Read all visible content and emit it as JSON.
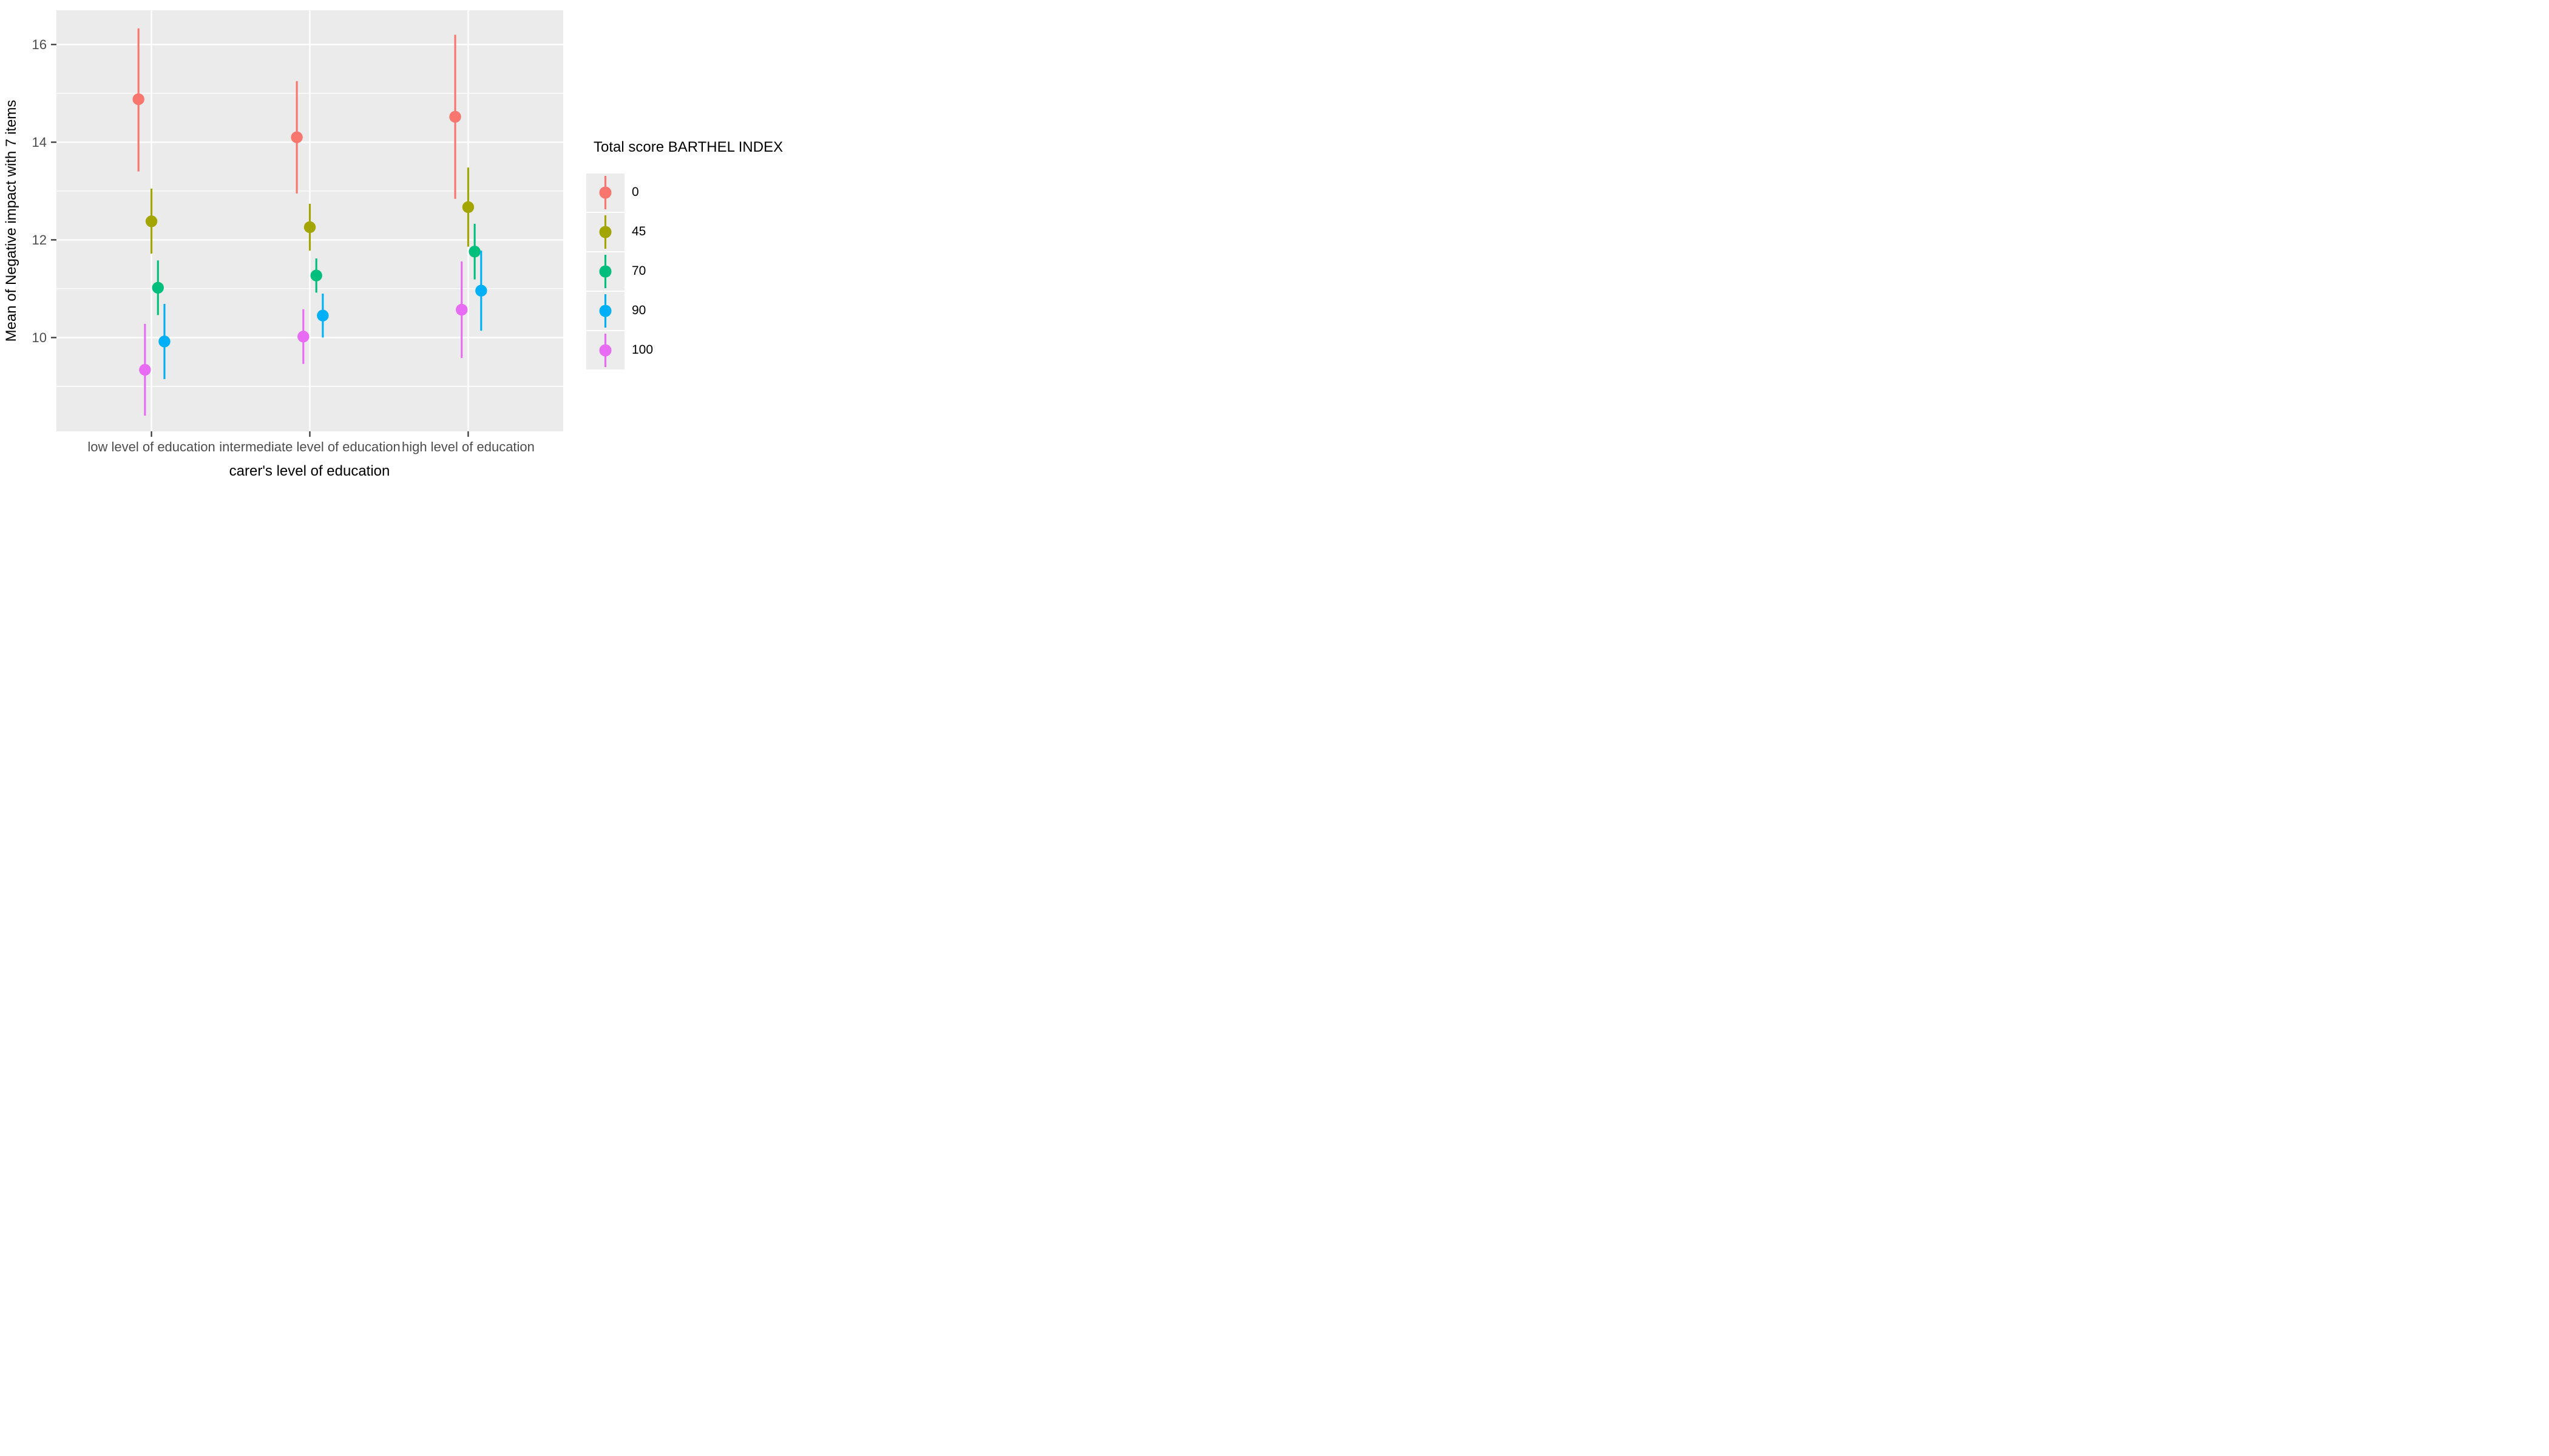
{
  "figure": {
    "background": "#FFFFFF",
    "panel_background": "#EBEBEB",
    "grid_color": "#FFFFFF",
    "tick_color": "#333333",
    "axis_text_color": "#4D4D4D",
    "title_text_color": "#000000"
  },
  "x_axis": {
    "title": "carer's level of education",
    "tick_labels": [
      "low level of education",
      "intermediate level of education",
      "high level of education"
    ]
  },
  "y_axis": {
    "title": "Mean of Negative impact with 7 items",
    "tick_labels": [
      "16",
      "14",
      "12",
      "10"
    ],
    "major_breaks": [
      16,
      14,
      12,
      10
    ],
    "minor_breaks": [
      15,
      13,
      11,
      9
    ],
    "range": [
      8.08,
      16.7
    ]
  },
  "legend": {
    "title": "Total score BARTHEL INDEX",
    "position": "right",
    "entries": [
      {
        "label": "0",
        "color": "#F8766D"
      },
      {
        "label": "45",
        "color": "#A3A500"
      },
      {
        "label": "70",
        "color": "#00BF7D"
      },
      {
        "label": "90",
        "color": "#00B0F6"
      },
      {
        "label": "100",
        "color": "#E76BF3"
      }
    ]
  },
  "chart_data": {
    "type": "pointrange",
    "title": "",
    "xlabel": "carer's level of education",
    "ylabel": "Mean of Negative impact with 7 items",
    "categories": [
      "low level of education",
      "intermediate level of education",
      "high level of education"
    ],
    "ylim": [
      8.08,
      16.7
    ],
    "grid": true,
    "legend_position": "right",
    "dodge_order_note": "left-to-right within each category: 0, 100, 45, 70, 90",
    "series": [
      {
        "name": "0",
        "color": "#F8766D",
        "offset_index": -2,
        "values": [
          {
            "mean": 14.88,
            "lo": 13.4,
            "hi": 16.33
          },
          {
            "mean": 14.1,
            "lo": 12.95,
            "hi": 15.25
          },
          {
            "mean": 14.52,
            "lo": 12.84,
            "hi": 16.2
          }
        ]
      },
      {
        "name": "45",
        "color": "#A3A500",
        "offset_index": 0,
        "values": [
          {
            "mean": 12.38,
            "lo": 11.72,
            "hi": 13.05
          },
          {
            "mean": 12.26,
            "lo": 11.78,
            "hi": 12.74
          },
          {
            "mean": 12.67,
            "lo": 11.86,
            "hi": 13.48
          }
        ]
      },
      {
        "name": "70",
        "color": "#00BF7D",
        "offset_index": 1,
        "values": [
          {
            "mean": 11.02,
            "lo": 10.46,
            "hi": 11.58
          },
          {
            "mean": 11.27,
            "lo": 10.92,
            "hi": 11.62
          },
          {
            "mean": 11.76,
            "lo": 11.19,
            "hi": 12.33
          }
        ]
      },
      {
        "name": "90",
        "color": "#00B0F6",
        "offset_index": 2,
        "values": [
          {
            "mean": 9.92,
            "lo": 9.15,
            "hi": 10.69
          },
          {
            "mean": 10.45,
            "lo": 10.0,
            "hi": 10.9
          },
          {
            "mean": 10.96,
            "lo": 10.14,
            "hi": 11.78
          }
        ]
      },
      {
        "name": "100",
        "color": "#E76BF3",
        "offset_index": -1,
        "values": [
          {
            "mean": 9.34,
            "lo": 8.4,
            "hi": 10.28
          },
          {
            "mean": 10.02,
            "lo": 9.46,
            "hi": 10.58
          },
          {
            "mean": 10.57,
            "lo": 9.58,
            "hi": 11.56
          }
        ]
      }
    ]
  }
}
